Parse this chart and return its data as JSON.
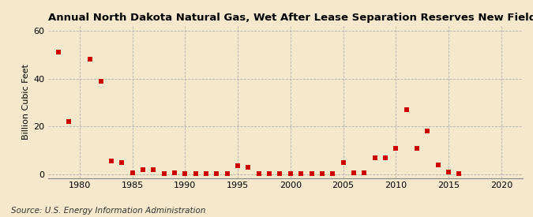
{
  "title": "Annual North Dakota Natural Gas, Wet After Lease Separation Reserves New Field Discoveries",
  "ylabel": "Billion Cubic Feet",
  "source": "Source: U.S. Energy Information Administration",
  "background_color": "#f5e8cc",
  "plot_bg_color": "#f5e8cc",
  "dot_color": "#cc0000",
  "grid_color": "#aaaaaa",
  "xlim": [
    1977,
    2022
  ],
  "ylim": [
    -1.5,
    62
  ],
  "xticks": [
    1980,
    1985,
    1990,
    1995,
    2000,
    2005,
    2010,
    2015,
    2020
  ],
  "yticks": [
    0,
    20,
    40,
    60
  ],
  "data": [
    [
      1978,
      51
    ],
    [
      1979,
      22
    ],
    [
      1981,
      48
    ],
    [
      1982,
      39
    ],
    [
      1983,
      5.5
    ],
    [
      1984,
      5
    ],
    [
      1985,
      0.8
    ],
    [
      1986,
      2
    ],
    [
      1987,
      2
    ],
    [
      1988,
      0.3
    ],
    [
      1989,
      0.8
    ],
    [
      1990,
      0.3
    ],
    [
      1991,
      0.3
    ],
    [
      1992,
      0.3
    ],
    [
      1993,
      0.3
    ],
    [
      1994,
      0.3
    ],
    [
      1995,
      3.5
    ],
    [
      1996,
      3
    ],
    [
      1997,
      0.3
    ],
    [
      1998,
      0.3
    ],
    [
      1999,
      0.3
    ],
    [
      2000,
      0.3
    ],
    [
      2001,
      0.3
    ],
    [
      2002,
      0.3
    ],
    [
      2003,
      0.3
    ],
    [
      2004,
      0.3
    ],
    [
      2005,
      5
    ],
    [
      2006,
      0.8
    ],
    [
      2007,
      0.8
    ],
    [
      2008,
      7
    ],
    [
      2009,
      7
    ],
    [
      2010,
      11
    ],
    [
      2011,
      27
    ],
    [
      2012,
      11
    ],
    [
      2013,
      18
    ],
    [
      2014,
      4
    ],
    [
      2015,
      1
    ],
    [
      2016,
      0.3
    ]
  ],
  "title_fontsize": 9.5,
  "label_fontsize": 8,
  "tick_fontsize": 8,
  "source_fontsize": 7.5,
  "marker_size": 14
}
